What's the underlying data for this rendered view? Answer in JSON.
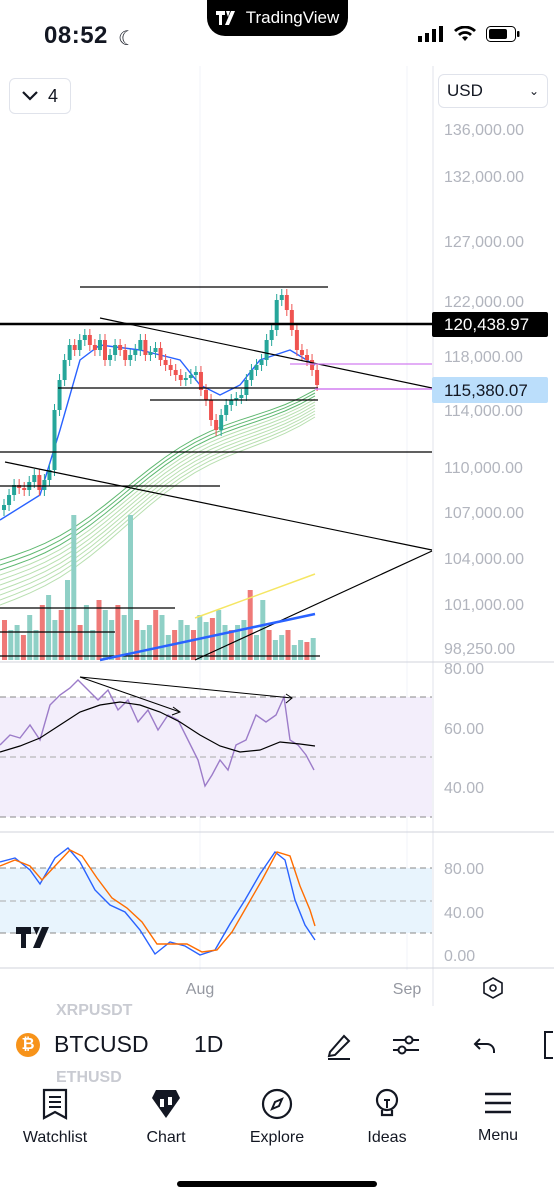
{
  "status": {
    "time": "08:52",
    "app_pill": "TradingView"
  },
  "chart": {
    "collapse_count": "4",
    "currency": "USD",
    "price_scale": [
      "136,000.00",
      "132,000.00",
      "127,000.00",
      "122,000.00",
      "118,000.00",
      "114,000.00",
      "110,000.00",
      "107,000.00",
      "104,000.00",
      "101,000.00",
      "98,250.00"
    ],
    "last_price_tag": "120,438.97",
    "current_price_tag": "115,380.07",
    "rsi_scale": [
      "80.00",
      "60.00",
      "40.00"
    ],
    "stoch_scale": [
      "80.00",
      "40.00",
      "0.00"
    ],
    "time_labels": [
      "Aug",
      "Sep"
    ],
    "colors": {
      "up": "#26a69a",
      "down": "#ef5350",
      "last_tag": "#000000",
      "current_tag": "#bbdefb",
      "rsi_bg": "#f3eefb",
      "stoch_bg": "#e8f4fd"
    }
  },
  "symbolbar": {
    "ghost_above": "XRPUSDT",
    "symbol": "BTCUSD",
    "interval": "1D",
    "ghost_below": "ETHUSD"
  },
  "tabs": [
    {
      "label": "Watchlist",
      "icon": "watchlist-icon"
    },
    {
      "label": "Chart",
      "icon": "chart-icon"
    },
    {
      "label": "Explore",
      "icon": "compass-icon"
    },
    {
      "label": "Ideas",
      "icon": "lightbulb-icon"
    },
    {
      "label": "Menu",
      "icon": "menu-icon"
    }
  ]
}
